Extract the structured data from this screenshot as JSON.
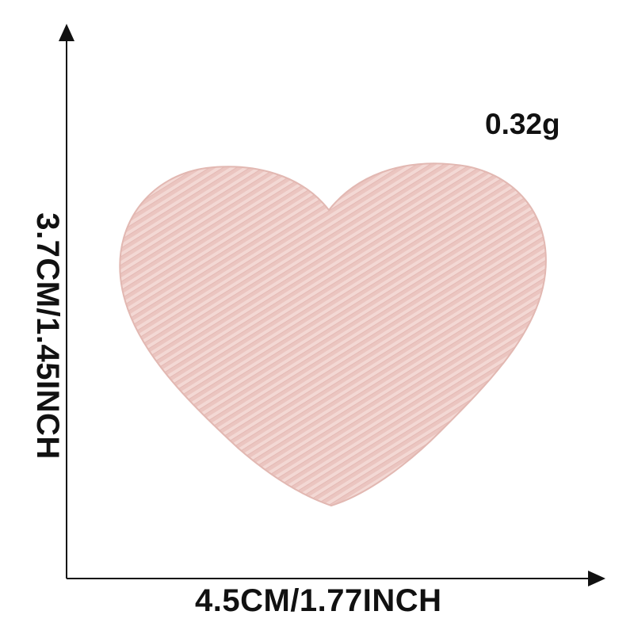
{
  "product": {
    "weight": "0.32g",
    "width": "4.5CM/1.77INCH",
    "height": "3.7CM/1.45INCH",
    "patch_color": "#ebc5c0",
    "stripe_color": "#f3d8d4",
    "shadow_color": "#d6a9a3"
  }
}
